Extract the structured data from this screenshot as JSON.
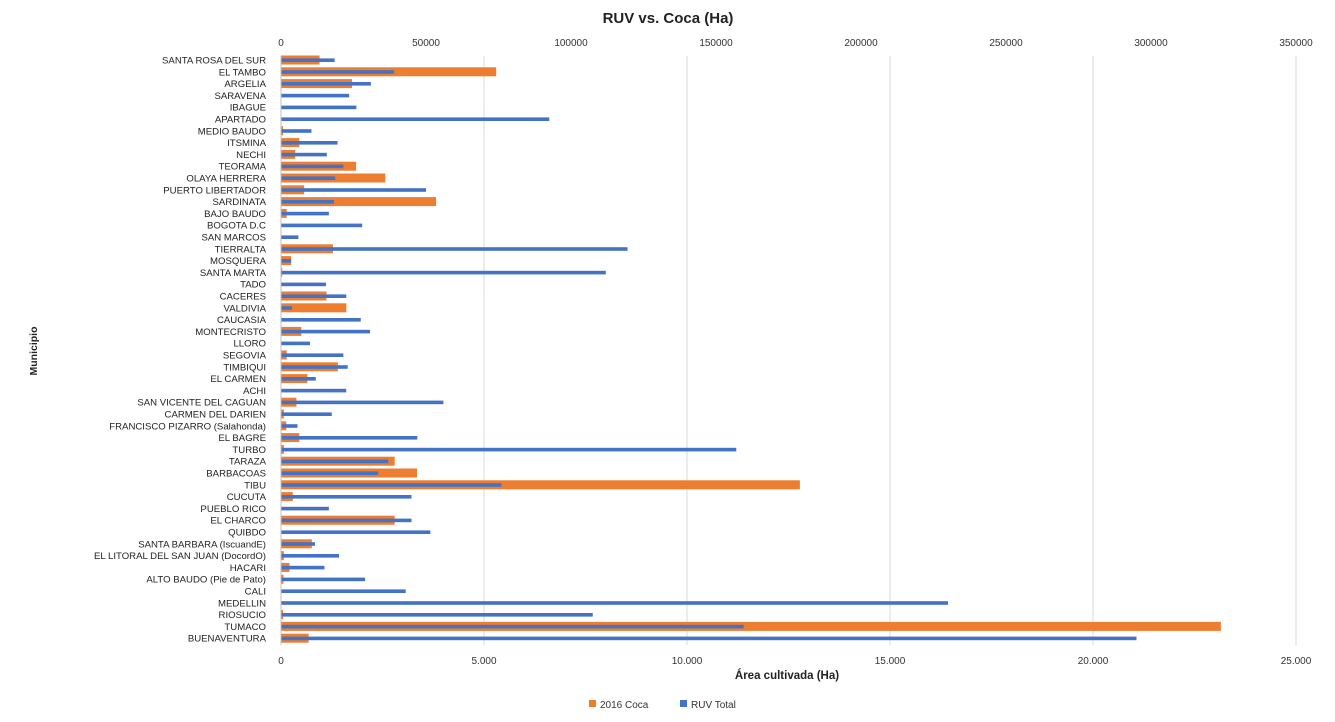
{
  "chart_data": {
    "type": "bar",
    "orientation": "horizontal",
    "title": "RUV vs. Coca (Ha)",
    "xlabel": "Área cultivada (Ha)",
    "ylabel": "Municipio",
    "grid": true,
    "legend_position": "bottom",
    "categories": [
      "SANTA ROSA DEL SUR",
      "EL TAMBO",
      "ARGELIA",
      "SARAVENA",
      "IBAGUE",
      "APARTADO",
      "MEDIO BAUDO",
      "ITSMINA",
      "NECHI",
      "TEORAMA",
      "OLAYA HERRERA",
      "PUERTO LIBERTADOR",
      "SARDINATA",
      "BAJO BAUDO",
      "BOGOTA D.C",
      "SAN MARCOS",
      "TIERRALTA",
      "MOSQUERA",
      "SANTA MARTA",
      "TADO",
      "CACERES",
      "VALDIVIA",
      "CAUCASIA",
      "MONTECRISTO",
      "LLORO",
      "SEGOVIA",
      "TIMBIQUI",
      "EL CARMEN",
      "ACHI",
      "SAN VICENTE DEL CAGUAN",
      "CARMEN DEL DARIEN",
      "FRANCISCO PIZARRO (Salahonda)",
      "EL BAGRE",
      "TURBO",
      "TARAZA",
      "BARBACOAS",
      "TIBU",
      "CUCUTA",
      "PUEBLO RICO",
      "EL CHARCO",
      "QUIBDO",
      "SANTA BARBARA (IscuandE)",
      "EL LITORAL DEL SAN JUAN (DocordO)",
      "HACARI",
      "ALTO BAUDO (Pie de Pato)",
      "CALI",
      "MEDELLIN",
      "RIOSUCIO",
      "TUMACO",
      "BUENAVENTURA"
    ],
    "axes": {
      "bottom": {
        "label": "Área cultivada (Ha)",
        "range": [
          0,
          25000
        ],
        "ticks": [
          0,
          5000,
          10000,
          15000,
          20000,
          25000
        ],
        "tick_labels": [
          "0",
          "5.000",
          "10.000",
          "15.000",
          "20.000",
          "25.000"
        ]
      },
      "top": {
        "range": [
          0,
          350000
        ],
        "ticks": [
          0,
          50000,
          100000,
          150000,
          200000,
          250000,
          300000,
          350000
        ],
        "tick_labels": [
          "0",
          "50000",
          "100000",
          "150000",
          "200000",
          "250000",
          "300000",
          "350000"
        ]
      }
    },
    "series": [
      {
        "name": "2016 Coca",
        "axis": "bottom",
        "color": "#ED7D31",
        "values": [
          950,
          5300,
          1750,
          0,
          0,
          0,
          50,
          450,
          350,
          1850,
          2570,
          570,
          3820,
          140,
          0,
          0,
          1280,
          250,
          30,
          0,
          1120,
          1610,
          0,
          500,
          0,
          140,
          1400,
          650,
          0,
          380,
          70,
          130,
          450,
          70,
          2800,
          3350,
          12780,
          290,
          0,
          2800,
          0,
          760,
          70,
          210,
          60,
          0,
          0,
          50,
          23150,
          680
        ]
      },
      {
        "name": "RUV Total",
        "axis": "top",
        "color": "#4472C4",
        "values": [
          18500,
          39000,
          31000,
          23500,
          26000,
          92500,
          10500,
          19500,
          15800,
          21500,
          18700,
          50000,
          18300,
          16500,
          28000,
          6000,
          119500,
          3500,
          112000,
          15500,
          22500,
          3800,
          27500,
          30700,
          10000,
          21500,
          23000,
          12000,
          22500,
          56000,
          17500,
          5700,
          47000,
          157000,
          37000,
          33500,
          76000,
          45000,
          16500,
          45000,
          51500,
          11700,
          20000,
          15000,
          29000,
          43000,
          230000,
          107500,
          159500,
          295000
        ]
      }
    ]
  },
  "legend": [
    {
      "label": "2016 Coca",
      "color": "#ED7D31"
    },
    {
      "label": "RUV Total",
      "color": "#4472C4"
    }
  ]
}
